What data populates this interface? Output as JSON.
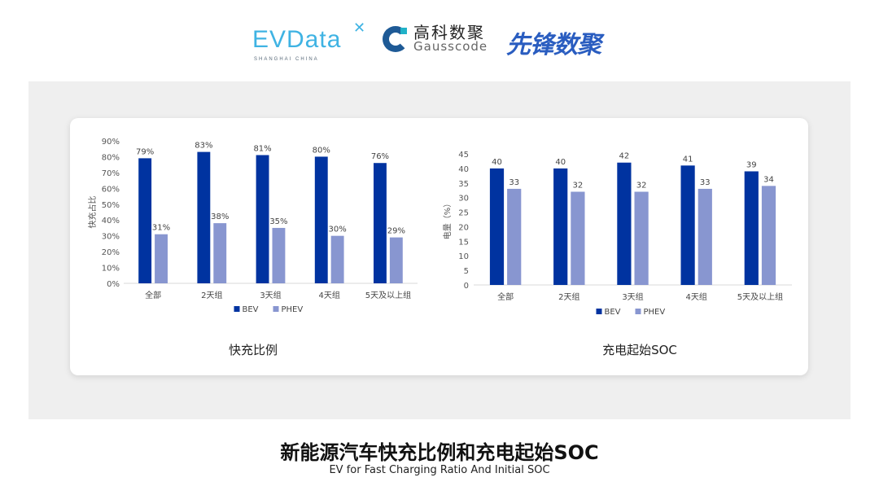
{
  "logos": {
    "evdata": {
      "text": "EVData",
      "subtitle": "SHANGHAI CHINA"
    },
    "gausscode": {
      "cn": "高科数聚",
      "en": "Gausscode"
    },
    "xianfeng": {
      "text": "先锋数聚"
    }
  },
  "footer": {
    "title": "新能源汽车快充比例和充电起始SOC",
    "subtitle": "EV for Fast Charging Ratio And Initial SOC"
  },
  "colors": {
    "BEV": "#0033a0",
    "PHEV": "#8896d0",
    "panel": "#efefef"
  },
  "chart_data": [
    {
      "type": "bar",
      "title": "快充比例",
      "ylabel": "快充占比",
      "xlabel": "",
      "categories": [
        "全部",
        "2天组",
        "3天组",
        "4天组",
        "5天及以上组"
      ],
      "series": [
        {
          "name": "BEV",
          "values": [
            79,
            83,
            81,
            80,
            76
          ]
        },
        {
          "name": "PHEV",
          "values": [
            31,
            38,
            35,
            30,
            29
          ]
        }
      ],
      "data_labels": [
        [
          "79%",
          "83%",
          "81%",
          "80%",
          "76%"
        ],
        [
          "31%",
          "38%",
          "35%",
          "30%",
          "29%"
        ]
      ],
      "ylim": [
        0,
        90
      ],
      "yticks": [
        "0%",
        "10%",
        "20%",
        "30%",
        "40%",
        "50%",
        "60%",
        "70%",
        "80%",
        "90%"
      ],
      "grid": false,
      "legend": "bottom"
    },
    {
      "type": "bar",
      "title": "充电起始SOC",
      "ylabel": "电量（%）",
      "xlabel": "",
      "categories": [
        "全部",
        "2天组",
        "3天组",
        "4天组",
        "5天及以上组"
      ],
      "series": [
        {
          "name": "BEV",
          "values": [
            40,
            40,
            42,
            41,
            39
          ]
        },
        {
          "name": "PHEV",
          "values": [
            33,
            32,
            32,
            33,
            34
          ]
        }
      ],
      "data_labels": [
        [
          "40",
          "40",
          "42",
          "41",
          "39"
        ],
        [
          "33",
          "32",
          "32",
          "33",
          "34"
        ]
      ],
      "ylim": [
        0,
        45
      ],
      "yticks": [
        "0",
        "5",
        "10",
        "15",
        "20",
        "25",
        "30",
        "35",
        "40",
        "45"
      ],
      "grid": false,
      "legend": "bottom"
    }
  ]
}
